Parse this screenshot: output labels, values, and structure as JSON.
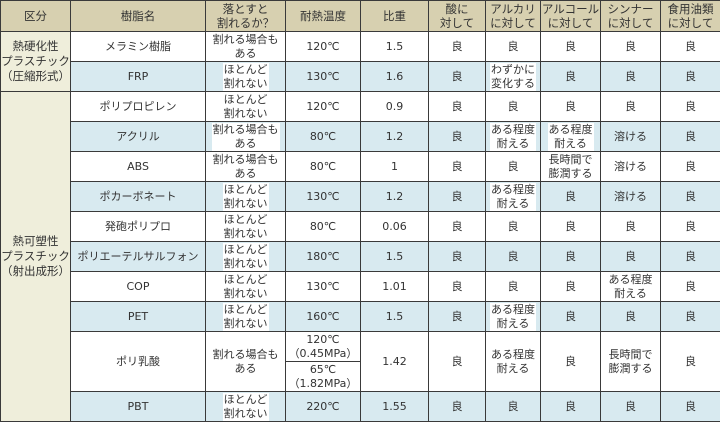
{
  "headers": [
    "区分",
    "樹脂名",
    "落とすと\n割れるか？",
    "耐熱温度",
    "比重",
    "酸に\n対して",
    "アルカリ\nに対して",
    "アルコール\nに対して",
    "シンナー\nに対して",
    "食用油類\nに対して"
  ],
  "categories": [
    {
      "label": "熱硬化性\nプラスチック\n（圧縮形式）",
      "rows": 2
    },
    {
      "label": "熱可塑性\nプラスチック\n（射出成形）",
      "rows": 10
    }
  ],
  "rows": [
    {
      "name": "メラミン樹脂",
      "breaks": "割れる場合も\nある",
      "heat": [
        "120℃"
      ],
      "sg": "1.5",
      "acid": "良",
      "alkali": "良",
      "alcohol": "良",
      "thinner": "良",
      "oil": "良"
    },
    {
      "name": "FRP",
      "breaks": "ほとんど\n割れない",
      "heat": [
        "130℃"
      ],
      "sg": "1.6",
      "acid": "良",
      "alkali": "わずかに\n変化する",
      "alcohol": "良",
      "thinner": "良",
      "oil": "良"
    },
    {
      "name": "ポリプロピレン",
      "breaks": "ほとんど\n割れない",
      "heat": [
        "120℃"
      ],
      "sg": "0.9",
      "acid": "良",
      "alkali": "良",
      "alcohol": "良",
      "thinner": "良",
      "oil": "良"
    },
    {
      "name": "アクリル",
      "breaks": "割れる場合も\nある",
      "heat": [
        "80℃"
      ],
      "sg": "1.2",
      "acid": "良",
      "alkali": "ある程度\n耐える",
      "alcohol": "ある程度\n耐える",
      "thinner": "溶ける",
      "oil": "良"
    },
    {
      "name": "ABS",
      "breaks": "割れる場合も\nある",
      "heat": [
        "80℃"
      ],
      "sg": "1",
      "acid": "良",
      "alkali": "良",
      "alcohol": "長時間で\n膨潤する",
      "thinner": "溶ける",
      "oil": "良"
    },
    {
      "name": "ポカーボネート",
      "breaks": "ほとんど\n割れない",
      "heat": [
        "130℃"
      ],
      "sg": "1.2",
      "acid": "良",
      "alkali": "ある程度\n耐える",
      "alcohol": "良",
      "thinner": "溶ける",
      "oil": "良"
    },
    {
      "name": "発砲ポリプロ",
      "breaks": "ほとんど\n割れない",
      "heat": [
        "80℃"
      ],
      "sg": "0.06",
      "acid": "良",
      "alkali": "良",
      "alcohol": "良",
      "thinner": "良",
      "oil": "良"
    },
    {
      "name": "ポリエーテルサルフォン",
      "breaks": "ほとんど\n割れない",
      "heat": [
        "180℃"
      ],
      "sg": "1.5",
      "acid": "良",
      "alkali": "良",
      "alcohol": "良",
      "thinner": "良",
      "oil": "良"
    },
    {
      "name": "COP",
      "breaks": "ほとんど\n割れない",
      "heat": [
        "130℃"
      ],
      "sg": "1.01",
      "acid": "良",
      "alkali": "良",
      "alcohol": "良",
      "thinner": "ある程度\n耐える",
      "oil": "良"
    },
    {
      "name": "PET",
      "breaks": "ほとんど\n割れない",
      "heat": [
        "160℃"
      ],
      "sg": "1.5",
      "acid": "良",
      "alkali": "ある程度\n耐える",
      "alcohol": "良",
      "thinner": "良",
      "oil": "良"
    },
    {
      "name": "ポリ乳酸",
      "breaks": "割れる場合も\nある",
      "heat": [
        "120℃\n（0.45MPa）",
        "65℃\n（1.82MPa）"
      ],
      "sg": "1.42",
      "acid": "良",
      "alkali": "ある程度\n耐える",
      "alcohol": "良",
      "thinner": "長時間で\n膨潤する",
      "oil": "良"
    },
    {
      "name": "PBT",
      "breaks": "ほとんど\n割れない",
      "heat": [
        "220℃"
      ],
      "sg": "1.55",
      "acid": "良",
      "alkali": "良",
      "alcohol": "良",
      "thinner": "良",
      "oil": "良"
    }
  ],
  "colors": {
    "header": "#d7d0b0",
    "category": "#efeedb",
    "stripe": "#d8eaf0",
    "border": "#3a3a3a"
  }
}
